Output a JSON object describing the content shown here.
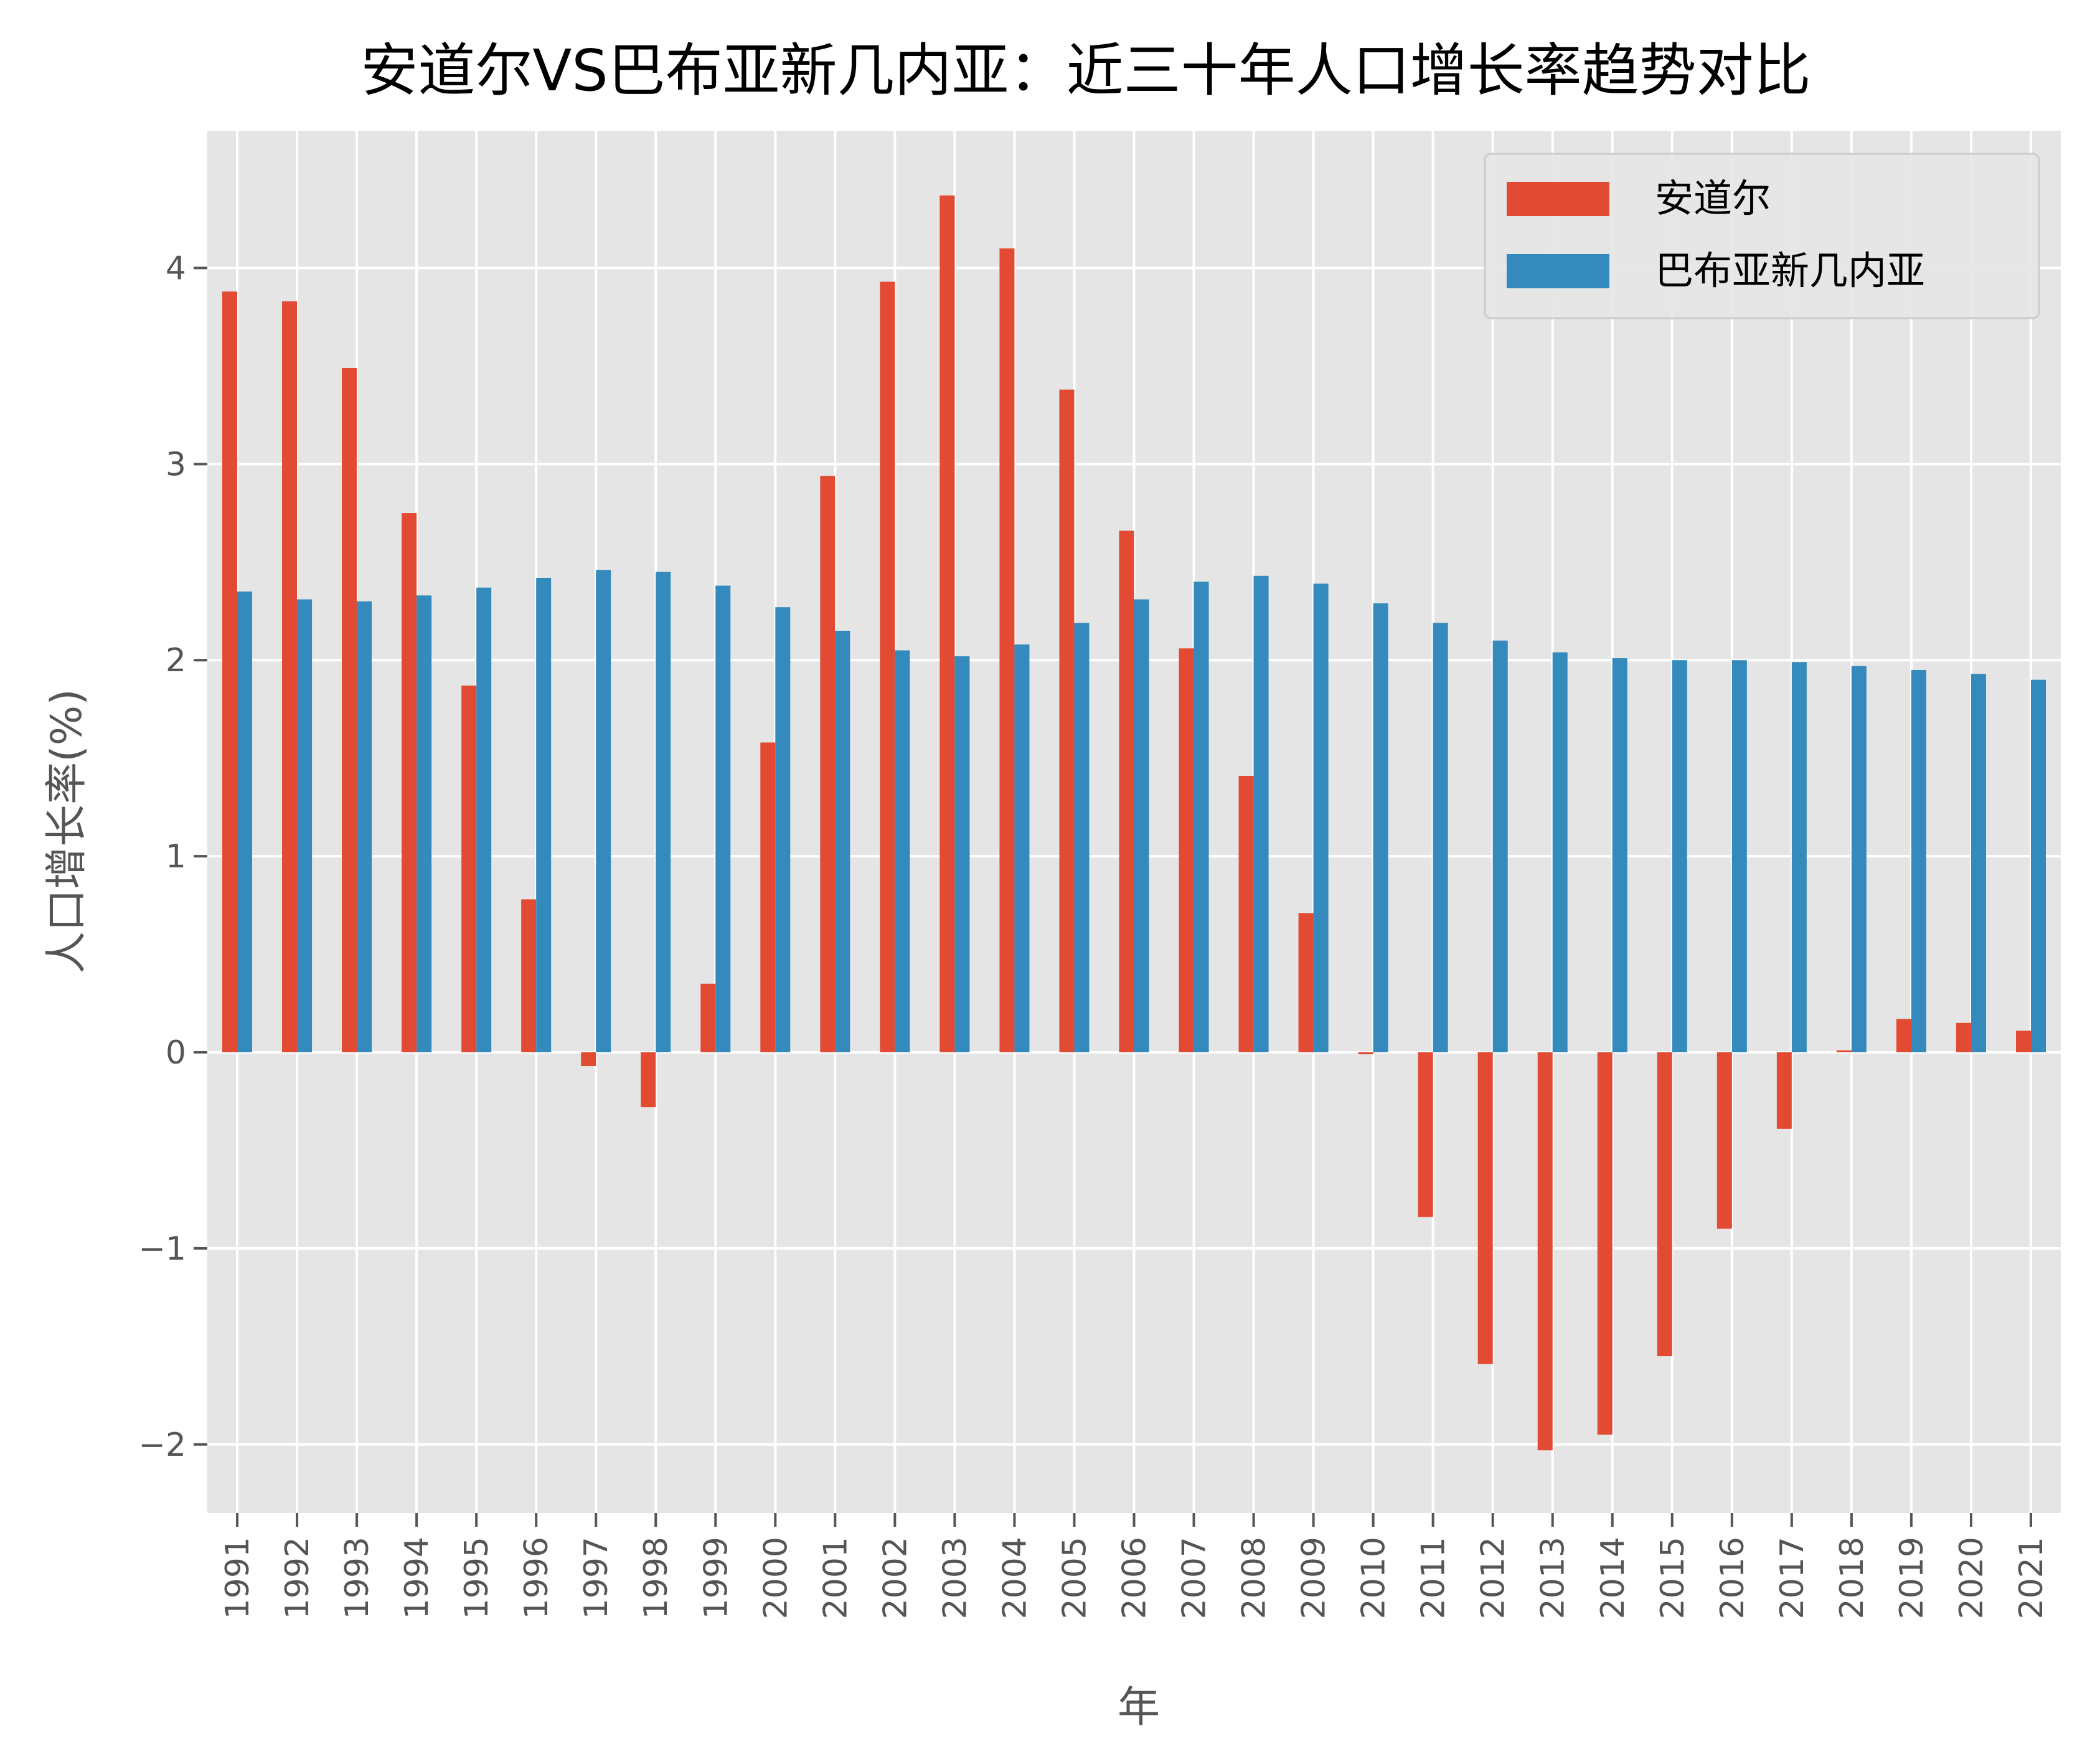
{
  "chart_data": {
    "type": "bar",
    "title": "安道尔VS巴布亚新几内亚：近三十年人口增长率趋势对比",
    "xlabel": "年",
    "ylabel": "人口增长率(%)",
    "ylim": [
      -2.35,
      4.7
    ],
    "yticks": [
      -2,
      -1,
      0,
      1,
      2,
      3,
      4
    ],
    "ytick_labels": [
      "−2",
      "−1",
      "0",
      "1",
      "2",
      "3",
      "4"
    ],
    "grid": true,
    "legend_position": "top-right",
    "categories": [
      "1991",
      "1992",
      "1993",
      "1994",
      "1995",
      "1996",
      "1997",
      "1998",
      "1999",
      "2000",
      "2001",
      "2002",
      "2003",
      "2004",
      "2005",
      "2006",
      "2007",
      "2008",
      "2009",
      "2010",
      "2011",
      "2012",
      "2013",
      "2014",
      "2015",
      "2016",
      "2017",
      "2018",
      "2019",
      "2020",
      "2021"
    ],
    "series": [
      {
        "name": "安道尔",
        "color": "#E24A33",
        "values": [
          3.88,
          3.83,
          3.49,
          2.75,
          1.87,
          0.78,
          -0.07,
          -0.28,
          0.35,
          1.58,
          2.94,
          3.93,
          4.37,
          4.1,
          3.38,
          2.66,
          2.06,
          1.41,
          0.71,
          -0.01,
          -0.84,
          -1.59,
          -2.03,
          -1.95,
          -1.55,
          -0.9,
          -0.39,
          0.01,
          0.17,
          0.15,
          0.11
        ]
      },
      {
        "name": "巴布亚新几内亚",
        "color": "#348ABD",
        "values": [
          2.35,
          2.31,
          2.3,
          2.33,
          2.37,
          2.42,
          2.46,
          2.45,
          2.38,
          2.27,
          2.15,
          2.05,
          2.02,
          2.08,
          2.19,
          2.31,
          2.4,
          2.43,
          2.39,
          2.29,
          2.19,
          2.1,
          2.04,
          2.01,
          2.0,
          2.0,
          1.99,
          1.97,
          1.95,
          1.93,
          1.9
        ]
      }
    ]
  }
}
